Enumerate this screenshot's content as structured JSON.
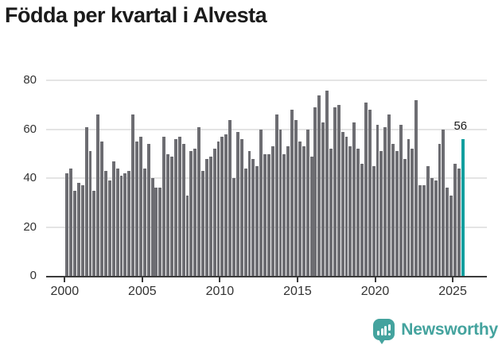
{
  "title": "Födda per kvartal i Alvesta",
  "chart_data": {
    "type": "bar",
    "title": "Födda per kvartal i Alvesta",
    "x_unit": "quarter",
    "start_quarter": "2000Q1",
    "end_quarter": "2025Q3",
    "values": [
      42,
      44,
      35,
      38,
      37,
      61,
      51,
      35,
      66,
      55,
      43,
      39,
      47,
      44,
      41,
      42,
      43,
      66,
      55,
      57,
      44,
      54,
      40,
      36,
      36,
      57,
      50,
      49,
      56,
      57,
      54,
      33,
      51,
      52,
      61,
      43,
      48,
      49,
      52,
      55,
      57,
      58,
      64,
      40,
      59,
      56,
      44,
      51,
      48,
      45,
      60,
      50,
      50,
      53,
      66,
      60,
      50,
      53,
      68,
      64,
      55,
      53,
      60,
      49,
      69,
      74,
      63,
      76,
      52,
      69,
      70,
      59,
      57,
      53,
      63,
      52,
      46,
      71,
      68,
      45,
      62,
      51,
      61,
      66,
      54,
      51,
      62,
      48,
      56,
      52,
      72,
      37,
      37,
      45,
      40,
      39,
      54,
      60,
      36,
      33,
      46,
      44,
      56
    ],
    "highlight": {
      "index": 102,
      "quarter": "2025Q3",
      "value": 56,
      "label": "56",
      "color": "#129f9f"
    },
    "bar_color": "#6d6d72",
    "x_tick_labels": [
      "2000",
      "2005",
      "2010",
      "2015",
      "2020",
      "2025"
    ],
    "y_tick_labels": [
      "0",
      "20",
      "40",
      "60",
      "80"
    ],
    "y_ticks": [
      0,
      20,
      40,
      60,
      80
    ],
    "ylim": [
      0,
      80
    ],
    "grid": true,
    "legend_position": "none"
  },
  "annotation": {
    "last_value_label": "56"
  },
  "branding": {
    "logo_text": "Newsworthy",
    "logo_color": "#44a39e",
    "logo_icon": "speech-bubble-with-bar-chart-and-exclamation"
  },
  "colors": {
    "background": "#ffffff",
    "title_text": "#1b1b1b",
    "axis": "#3b3b3b",
    "gridline": "#e4e4e4",
    "tick_text": "#333333",
    "bar_default": "#6d6d72",
    "bar_highlight": "#129f9f"
  }
}
